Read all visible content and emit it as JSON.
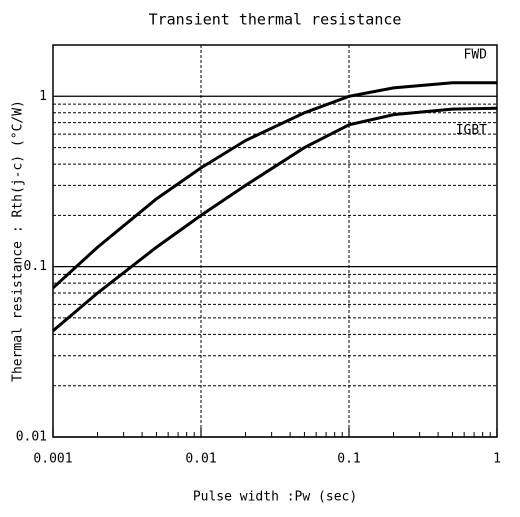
{
  "chart_data": {
    "type": "line",
    "title": "Transient thermal resistance",
    "xlabel": "Pulse width :Pw (sec)",
    "ylabel": "Thermal resistance : Rth(j-c)  (°C/W)",
    "x": [
      0.001,
      0.002,
      0.005,
      0.01,
      0.02,
      0.05,
      0.1,
      0.2,
      0.5,
      1
    ],
    "series": [
      {
        "name": "FWD",
        "color": "#000000",
        "values": [
          0.075,
          0.13,
          0.25,
          0.38,
          0.55,
          0.8,
          1.0,
          1.12,
          1.2,
          1.2
        ]
      },
      {
        "name": "IGBT",
        "color": "#000000",
        "values": [
          0.042,
          0.07,
          0.13,
          0.2,
          0.3,
          0.5,
          0.68,
          0.78,
          0.84,
          0.85
        ]
      }
    ],
    "xlim": [
      0.001,
      1
    ],
    "ylim": [
      0.01,
      2
    ],
    "xticks": [
      0.001,
      0.01,
      0.1,
      1
    ],
    "yticks": [
      0.01,
      0.1,
      1
    ],
    "xminor_ticks": [
      0.002,
      0.003,
      0.004,
      0.005,
      0.006,
      0.007,
      0.008,
      0.009,
      0.02,
      0.03,
      0.04,
      0.05,
      0.06,
      0.07,
      0.08,
      0.09,
      0.2,
      0.3,
      0.4,
      0.5,
      0.6,
      0.7,
      0.8,
      0.9
    ],
    "yminor_ticks": [
      0.02,
      0.03,
      0.04,
      0.05,
      0.06,
      0.07,
      0.08,
      0.09,
      0.2,
      0.3,
      0.4,
      0.5,
      0.6,
      0.7,
      0.8,
      0.9
    ],
    "log_x": true,
    "log_y": true,
    "grid": true
  }
}
